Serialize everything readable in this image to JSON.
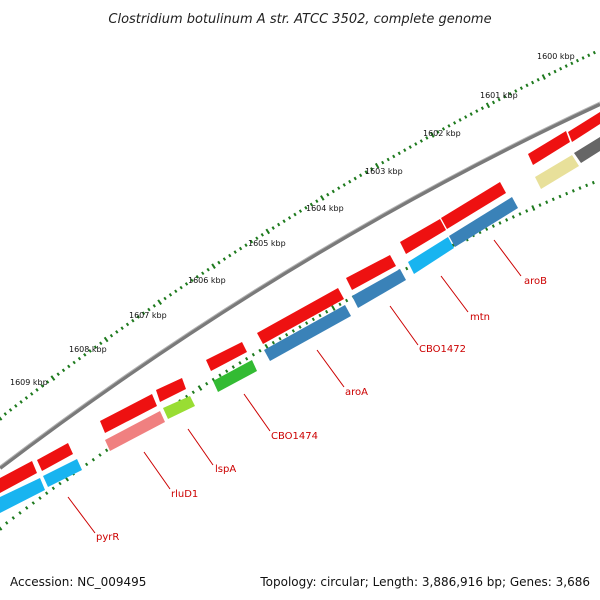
{
  "title": "Clostridium botulinum A str. ATCC 3502, complete genome",
  "footer": {
    "accession": "Accession: NC_009495",
    "summary": "Topology: circular; Length: 3,886,916 bp; Genes: 3,686"
  },
  "kbp_ticks": [
    "1600 kbp",
    "1601 kbp",
    "1602 kbp",
    "1603 kbp",
    "1604 kbp",
    "1605 kbp",
    "1606 kbp",
    "1607 kbp",
    "1608 kbp",
    "1609 kbp"
  ],
  "gene_labels": [
    {
      "name": "aroB",
      "color": "#cc0000"
    },
    {
      "name": "mtn",
      "color": "#cc0000"
    },
    {
      "name": "CBO1472",
      "color": "#cc0000"
    },
    {
      "name": "aroA",
      "color": "#cc0000"
    },
    {
      "name": "CBO1474",
      "color": "#cc0000"
    },
    {
      "name": "lspA",
      "color": "#cc0000"
    },
    {
      "name": "rluD1",
      "color": "#cc0000"
    },
    {
      "name": "pyrR",
      "color": "#cc0000"
    }
  ],
  "colors": {
    "backbone": "#7a7a7a",
    "tick": "#1e7a1e",
    "red_gene": "#ee1111",
    "blue_gene": "#3a82b8",
    "cyan_gene": "#18b4f0",
    "green_gene": "#33bb33",
    "lime_gene": "#99dd33",
    "pink_gene": "#f08080",
    "yellow_gene": "#e8e09a",
    "gray_gene": "#666666"
  }
}
